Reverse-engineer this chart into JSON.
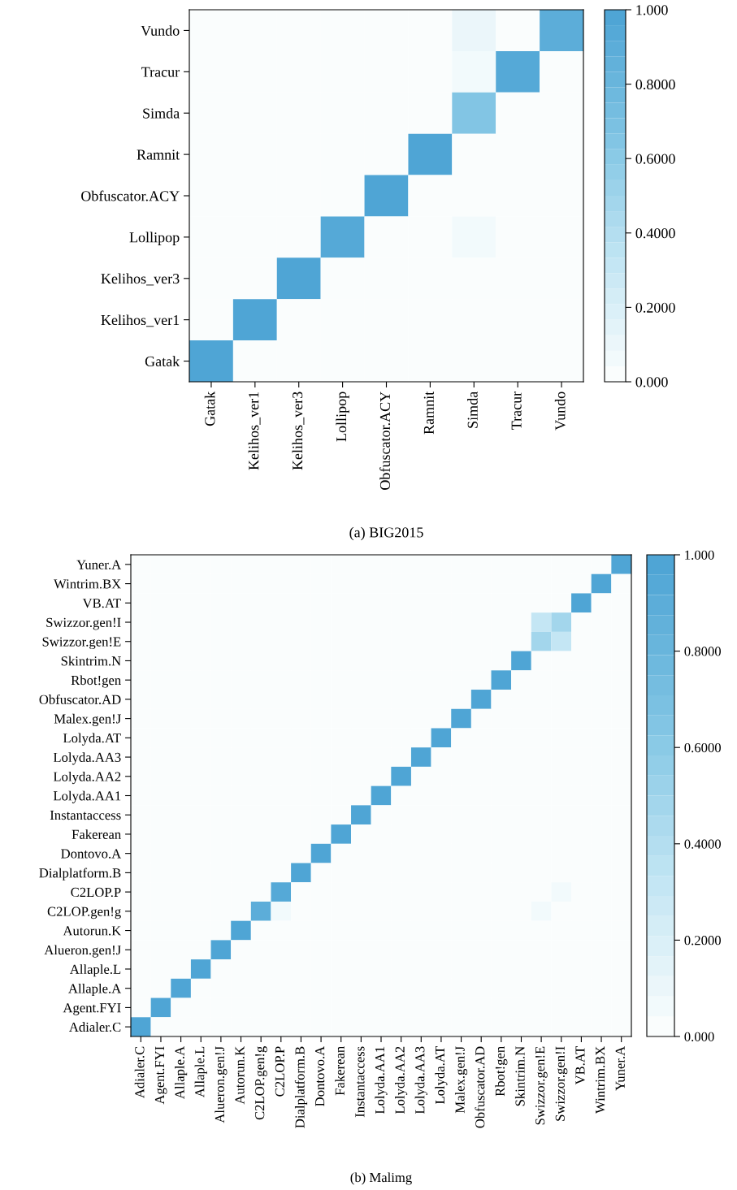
{
  "chart_data": [
    {
      "type": "heatmap",
      "title": "(a) BIG2015",
      "categories": [
        "Gatak",
        "Kelihos_ver1",
        "Kelihos_ver3",
        "Lollipop",
        "Obfuscator.ACY",
        "Ramnit",
        "Simda",
        "Tracur",
        "Vundo"
      ],
      "y_categories": [
        "Vundo",
        "Tracur",
        "Simda",
        "Ramnit",
        "Obfuscator.ACY",
        "Lollipop",
        "Kelihos_ver3",
        "Kelihos_ver1",
        "Gatak"
      ],
      "cells": [
        [
          0,
          0,
          0,
          0,
          0,
          0,
          0.09,
          0,
          0.91
        ],
        [
          0,
          0,
          0,
          0,
          0,
          0,
          0.05,
          0.95,
          0
        ],
        [
          0,
          0,
          0,
          0,
          0,
          0,
          0.65,
          0,
          0
        ],
        [
          0,
          0,
          0,
          0,
          0,
          1,
          0,
          0,
          0
        ],
        [
          0,
          0,
          0,
          0,
          1,
          0,
          0,
          0,
          0
        ],
        [
          0,
          0,
          0,
          0.95,
          0,
          0,
          0.05,
          0,
          0
        ],
        [
          0,
          0,
          1,
          0,
          0,
          0,
          0,
          0,
          0
        ],
        [
          0,
          0.97,
          0,
          0,
          0,
          0,
          0.03,
          0,
          0
        ],
        [
          1,
          0,
          0,
          0,
          0,
          0,
          0,
          0,
          0
        ]
      ],
      "clim": [
        0,
        1
      ],
      "cticks": [
        {
          "value": 0,
          "label": "0.000"
        },
        {
          "value": 0.2,
          "label": "0.2000"
        },
        {
          "value": 0.4,
          "label": "0.4000"
        },
        {
          "value": 0.6,
          "label": "0.6000"
        },
        {
          "value": 0.8,
          "label": "0.8000"
        },
        {
          "value": 1,
          "label": "1.000"
        }
      ]
    },
    {
      "type": "heatmap",
      "title": "(b) Malimg",
      "categories": [
        "Adialer.C",
        "Agent.FYI",
        "Allaple.A",
        "Allaple.L",
        "Alueron.gen!J",
        "Autorun.K",
        "C2LOP.gen!g",
        "C2LOP.P",
        "Dialplatform.B",
        "Dontovo.A",
        "Fakerean",
        "Instantaccess",
        "Lolyda.AA1",
        "Lolyda.AA2",
        "Lolyda.AA3",
        "Lolyda.AT",
        "Malex.gen!J",
        "Obfuscator.AD",
        "Rbot!gen",
        "Skintrim.N",
        "Swizzor.gen!E",
        "Swizzor.gen!I",
        "VB.AT",
        "Wintrim.BX",
        "Yuner.A"
      ],
      "y_categories": [
        "Yuner.A",
        "Wintrim.BX",
        "VB.AT",
        "Swizzor.gen!I",
        "Swizzor.gen!E",
        "Skintrim.N",
        "Rbot!gen",
        "Obfuscator.AD",
        "Malex.gen!J",
        "Lolyda.AT",
        "Lolyda.AA3",
        "Lolyda.AA2",
        "Lolyda.AA1",
        "Instantaccess",
        "Fakerean",
        "Dontovo.A",
        "Dialplatform.B",
        "C2LOP.P",
        "C2LOP.gen!g",
        "Autorun.K",
        "Alueron.gen!J",
        "Allaple.L",
        "Allaple.A",
        "Agent.FYI",
        "Adialer.C"
      ],
      "cells": [
        [
          0,
          0,
          0,
          0,
          0,
          0,
          0,
          0,
          0,
          0,
          0,
          0,
          0,
          0,
          0,
          0,
          0,
          0,
          0,
          0,
          0,
          0,
          0,
          0,
          1
        ],
        [
          0,
          0,
          0,
          0,
          0,
          0,
          0,
          0,
          0,
          0,
          0,
          0,
          0,
          0,
          0,
          0,
          0,
          0,
          0,
          0,
          0,
          0,
          0,
          1,
          0
        ],
        [
          0,
          0,
          0,
          0,
          0,
          0,
          0,
          0,
          0,
          0,
          0,
          0,
          0,
          0,
          0,
          0,
          0,
          0,
          0,
          0,
          0,
          0,
          1,
          0,
          0
        ],
        [
          0,
          0,
          0,
          0,
          0,
          0,
          0,
          0.02,
          0,
          0,
          0,
          0,
          0,
          0,
          0,
          0,
          0,
          0,
          0,
          0,
          0.3,
          0.48,
          0,
          0,
          0
        ],
        [
          0,
          0,
          0,
          0,
          0,
          0,
          0,
          0,
          0,
          0,
          0,
          0,
          0,
          0,
          0,
          0,
          0,
          0,
          0,
          0,
          0.48,
          0.3,
          0,
          0,
          0
        ],
        [
          0,
          0,
          0,
          0,
          0,
          0,
          0,
          0,
          0,
          0,
          0,
          0,
          0,
          0,
          0,
          0,
          0,
          0,
          0,
          1,
          0,
          0,
          0,
          0,
          0
        ],
        [
          0,
          0,
          0,
          0,
          0,
          0,
          0,
          0,
          0,
          0,
          0,
          0,
          0,
          0,
          0,
          0,
          0,
          0,
          1,
          0,
          0,
          0,
          0,
          0,
          0
        ],
        [
          0,
          0,
          0,
          0,
          0,
          0,
          0,
          0,
          0,
          0,
          0,
          0,
          0,
          0,
          0,
          0,
          0,
          1,
          0,
          0,
          0,
          0,
          0,
          0,
          0
        ],
        [
          0,
          0,
          0,
          0,
          0,
          0,
          0,
          0,
          0,
          0,
          0,
          0,
          0,
          0,
          0,
          0,
          1,
          0,
          0,
          0,
          0,
          0,
          0,
          0,
          0
        ],
        [
          0,
          0,
          0,
          0,
          0,
          0,
          0,
          0,
          0,
          0,
          0,
          0,
          0,
          0,
          0,
          1,
          0,
          0,
          0,
          0,
          0,
          0,
          0,
          0,
          0
        ],
        [
          0,
          0,
          0,
          0,
          0,
          0,
          0,
          0,
          0,
          0,
          0,
          0,
          0,
          0,
          1,
          0,
          0,
          0,
          0,
          0,
          0,
          0,
          0,
          0,
          0
        ],
        [
          0,
          0,
          0,
          0,
          0,
          0,
          0,
          0,
          0,
          0,
          0,
          0,
          0,
          1,
          0,
          0,
          0,
          0,
          0,
          0,
          0,
          0,
          0,
          0,
          0
        ],
        [
          0,
          0,
          0,
          0,
          0,
          0,
          0,
          0,
          0,
          0,
          0,
          0,
          1,
          0,
          0,
          0,
          0,
          0,
          0,
          0,
          0,
          0,
          0,
          0,
          0
        ],
        [
          0,
          0,
          0,
          0,
          0,
          0,
          0,
          0,
          0,
          0,
          0,
          1,
          0,
          0,
          0,
          0,
          0,
          0,
          0,
          0,
          0,
          0,
          0,
          0,
          0
        ],
        [
          0,
          0,
          0,
          0,
          0,
          0,
          0,
          0,
          0,
          0,
          1,
          0,
          0,
          0,
          0,
          0,
          0,
          0,
          0,
          0,
          0,
          0,
          0,
          0,
          0
        ],
        [
          0,
          0,
          0,
          0,
          0,
          0,
          0,
          0,
          0,
          1,
          0,
          0,
          0,
          0,
          0,
          0,
          0,
          0,
          0,
          0,
          0,
          0,
          0,
          0,
          0
        ],
        [
          0,
          0,
          0,
          0,
          0,
          0,
          0,
          0,
          1,
          0,
          0,
          0,
          0,
          0,
          0,
          0,
          0,
          0,
          0,
          0,
          0,
          0,
          0,
          0,
          0
        ],
        [
          0,
          0,
          0,
          0,
          0,
          0,
          0,
          0.94,
          0,
          0,
          0,
          0,
          0,
          0,
          0,
          0,
          0,
          0,
          0,
          0,
          0,
          0.05,
          0,
          0,
          0
        ],
        [
          0,
          0,
          0,
          0,
          0,
          0,
          0.9,
          0.05,
          0,
          0,
          0,
          0,
          0,
          0,
          0,
          0,
          0,
          0,
          0,
          0,
          0.05,
          0,
          0,
          0,
          0
        ],
        [
          0,
          0,
          0,
          0,
          0,
          1,
          0,
          0,
          0,
          0,
          0,
          0,
          0,
          0,
          0,
          0,
          0,
          0,
          0,
          0,
          0,
          0,
          0,
          0,
          0
        ],
        [
          0,
          0,
          0,
          0,
          1,
          0,
          0,
          0,
          0,
          0,
          0,
          0,
          0,
          0,
          0,
          0,
          0,
          0,
          0,
          0,
          0,
          0,
          0,
          0,
          0
        ],
        [
          0,
          0,
          0,
          1,
          0,
          0,
          0,
          0,
          0,
          0,
          0,
          0,
          0,
          0,
          0,
          0,
          0,
          0,
          0,
          0,
          0,
          0,
          0,
          0,
          0
        ],
        [
          0,
          0,
          0.97,
          0,
          0,
          0,
          0,
          0,
          0,
          0,
          0,
          0,
          0,
          0,
          0,
          0,
          0,
          0,
          0,
          0,
          0,
          0,
          0,
          0.03,
          0
        ],
        [
          0,
          1,
          0,
          0,
          0,
          0,
          0,
          0,
          0,
          0,
          0,
          0,
          0,
          0,
          0,
          0,
          0,
          0,
          0,
          0,
          0,
          0,
          0,
          0,
          0
        ],
        [
          1,
          0,
          0,
          0,
          0,
          0,
          0,
          0,
          0,
          0,
          0,
          0,
          0,
          0,
          0,
          0,
          0,
          0,
          0,
          0,
          0,
          0,
          0,
          0,
          0
        ]
      ],
      "clim": [
        0,
        1
      ],
      "cticks": [
        {
          "value": 0,
          "label": "0.000"
        },
        {
          "value": 0.2,
          "label": "0.2000"
        },
        {
          "value": 0.4,
          "label": "0.4000"
        },
        {
          "value": 0.6,
          "label": "0.6000"
        },
        {
          "value": 0.8,
          "label": "0.8000"
        },
        {
          "value": 1,
          "label": "1.000"
        }
      ]
    }
  ]
}
